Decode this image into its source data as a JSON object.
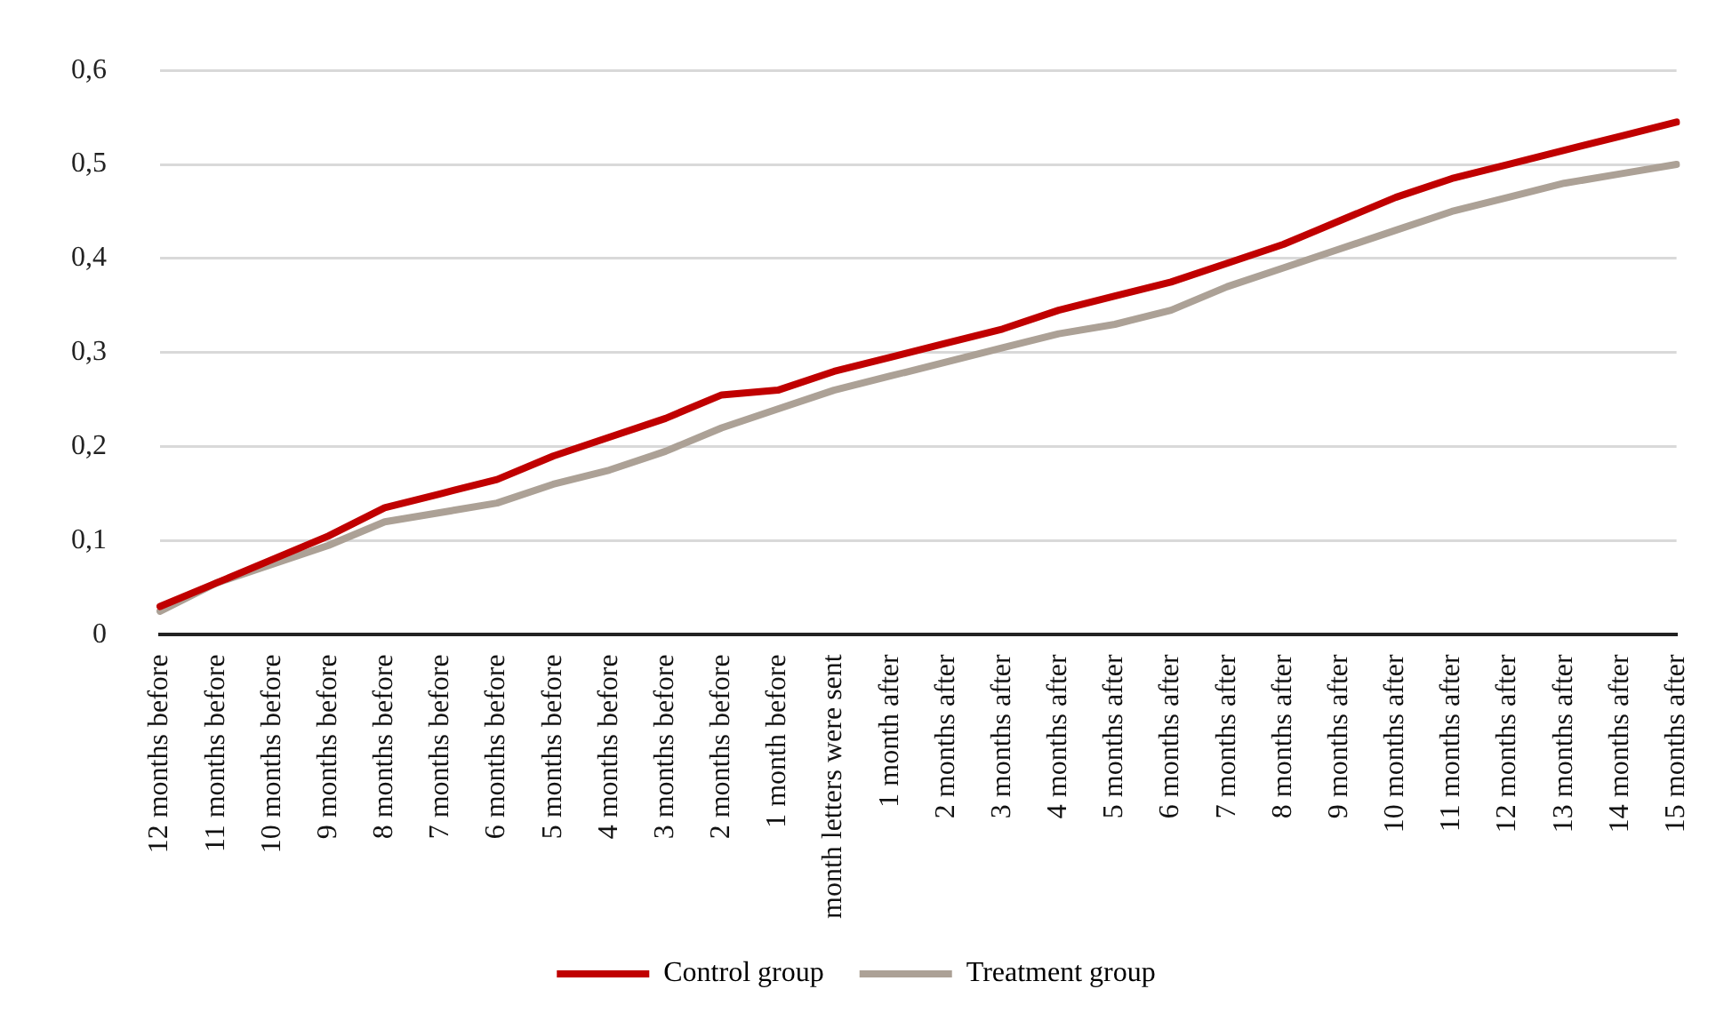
{
  "chart_data": {
    "type": "line",
    "categories": [
      "12 months before",
      "11 months before",
      "10 months before",
      "9 months before",
      "8 months before",
      "7 months before",
      "6 months before",
      "5 months before",
      "4 months before",
      "3 months before",
      "2 months before",
      "1 month before",
      "month letters were sent",
      "1 month after",
      "2 months after",
      "3 months after",
      "4 months after",
      "5 months after",
      "6 months after",
      "7 months after",
      "8 months after",
      "9 months after",
      "10 months after",
      "11 months after",
      "12 months after",
      "13 months after",
      "14 months after",
      "15 months after"
    ],
    "series": [
      {
        "name": "Control group",
        "color": "#c00000",
        "values": [
          0.03,
          0.055,
          0.08,
          0.105,
          0.135,
          0.15,
          0.165,
          0.19,
          0.21,
          0.23,
          0.255,
          0.26,
          0.28,
          0.295,
          0.31,
          0.325,
          0.345,
          0.36,
          0.375,
          0.395,
          0.415,
          0.44,
          0.465,
          0.485,
          0.5,
          0.515,
          0.53,
          0.545
        ]
      },
      {
        "name": "Treatment group",
        "color": "#aca196",
        "values": [
          0.025,
          0.055,
          0.075,
          0.095,
          0.12,
          0.13,
          0.14,
          0.16,
          0.175,
          0.195,
          0.22,
          0.24,
          0.26,
          0.275,
          0.29,
          0.305,
          0.32,
          0.33,
          0.345,
          0.37,
          0.39,
          0.41,
          0.43,
          0.45,
          0.465,
          0.48,
          0.49,
          0.5
        ]
      }
    ],
    "ylim": [
      0,
      0.6
    ],
    "yticks": [
      {
        "value": 0,
        "label": "0"
      },
      {
        "value": 0.1,
        "label": "0,1"
      },
      {
        "value": 0.2,
        "label": "0,2"
      },
      {
        "value": 0.3,
        "label": "0,3"
      },
      {
        "value": 0.4,
        "label": "0,4"
      },
      {
        "value": 0.5,
        "label": "0,5"
      },
      {
        "value": 0.6,
        "label": "0,6"
      }
    ],
    "grid": "y",
    "legend": "bottom",
    "marker": "none",
    "line_style": "solid"
  }
}
